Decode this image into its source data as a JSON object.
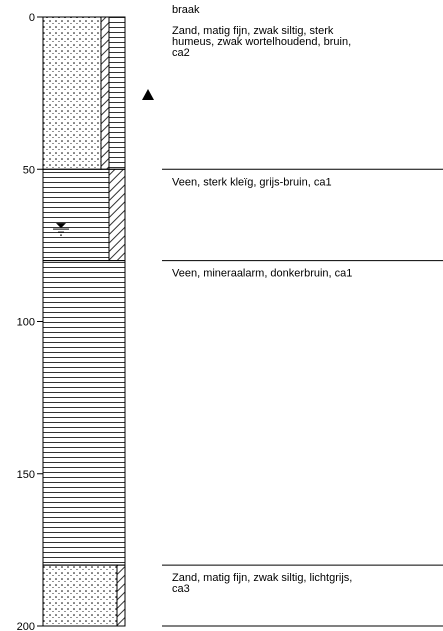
{
  "header": {
    "label": "braak"
  },
  "depth_axis": {
    "lim": [
      0,
      200
    ],
    "ticks": [
      0,
      50,
      100,
      150,
      200
    ]
  },
  "layers": [
    {
      "top": 0,
      "bottom": 50,
      "lines": [
        "Zand, matig fijn, zwak siltig, sterk",
        "humeus, zwak wortelhoudend, bruin,",
        "ca2"
      ]
    },
    {
      "top": 50,
      "bottom": 80,
      "lines": [
        "Veen, sterk kleïg, grijs-bruin, ca1"
      ]
    },
    {
      "top": 80,
      "bottom": 180,
      "lines": [
        "Veen, mineraalarm, donkerbruin, ca1"
      ]
    },
    {
      "top": 180,
      "bottom": 200,
      "lines": [
        "Zand, matig fijn, zwak siltig, lichtgrijs,",
        "ca3"
      ]
    }
  ]
}
